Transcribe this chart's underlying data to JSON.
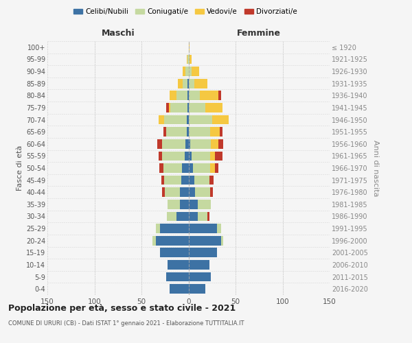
{
  "age_groups": [
    "0-4",
    "5-9",
    "10-14",
    "15-19",
    "20-24",
    "25-29",
    "30-34",
    "35-39",
    "40-44",
    "45-49",
    "50-54",
    "55-59",
    "60-64",
    "65-69",
    "70-74",
    "75-79",
    "80-84",
    "85-89",
    "90-94",
    "95-99",
    "100+"
  ],
  "birth_years": [
    "2016-2020",
    "2011-2015",
    "2006-2010",
    "2001-2005",
    "1996-2000",
    "1991-1995",
    "1986-1990",
    "1981-1985",
    "1976-1980",
    "1971-1975",
    "1966-1970",
    "1961-1965",
    "1956-1960",
    "1951-1955",
    "1946-1950",
    "1941-1945",
    "1936-1940",
    "1931-1935",
    "1926-1930",
    "1921-1925",
    "≤ 1920"
  ],
  "maschi": {
    "celibi": [
      20,
      24,
      22,
      30,
      35,
      30,
      13,
      9,
      9,
      8,
      7,
      4,
      3,
      2,
      2,
      1,
      1,
      1,
      0,
      0,
      0
    ],
    "coniugati": [
      0,
      0,
      0,
      0,
      3,
      5,
      10,
      13,
      16,
      18,
      20,
      24,
      25,
      22,
      24,
      18,
      12,
      5,
      3,
      1,
      0
    ],
    "vedovi": [
      0,
      0,
      0,
      0,
      0,
      0,
      0,
      0,
      0,
      0,
      0,
      0,
      0,
      0,
      6,
      2,
      7,
      5,
      3,
      1,
      0
    ],
    "divorziati": [
      0,
      0,
      0,
      0,
      0,
      0,
      0,
      0,
      3,
      3,
      4,
      4,
      5,
      3,
      0,
      3,
      0,
      0,
      0,
      0,
      0
    ]
  },
  "femmine": {
    "nubili": [
      18,
      24,
      22,
      30,
      35,
      30,
      10,
      10,
      7,
      6,
      5,
      3,
      2,
      0,
      0,
      0,
      0,
      0,
      0,
      0,
      0
    ],
    "coniugate": [
      0,
      0,
      0,
      0,
      2,
      5,
      10,
      14,
      16,
      16,
      18,
      20,
      22,
      23,
      25,
      18,
      12,
      6,
      3,
      1,
      0
    ],
    "vedove": [
      0,
      0,
      0,
      0,
      0,
      0,
      0,
      0,
      0,
      0,
      5,
      5,
      8,
      10,
      18,
      18,
      20,
      14,
      8,
      2,
      1
    ],
    "divorziate": [
      0,
      0,
      0,
      0,
      0,
      0,
      2,
      0,
      3,
      5,
      4,
      8,
      5,
      3,
      0,
      0,
      3,
      0,
      0,
      0,
      0
    ]
  },
  "colors": {
    "celibi": "#3d72a4",
    "coniugati": "#c5d9a0",
    "vedovi": "#f5c842",
    "divorziati": "#c0392b"
  },
  "title": "Popolazione per età, sesso e stato civile - 2021",
  "subtitle": "COMUNE DI URURI (CB) - Dati ISTAT 1° gennaio 2021 - Elaborazione TUTTITALIA.IT",
  "xlabel_left": "Maschi",
  "xlabel_right": "Femmine",
  "ylabel_left": "Fasce di età",
  "ylabel_right": "Anni di nascita",
  "xlim": 150,
  "background_color": "#f5f5f5",
  "grid_color": "#cccccc"
}
